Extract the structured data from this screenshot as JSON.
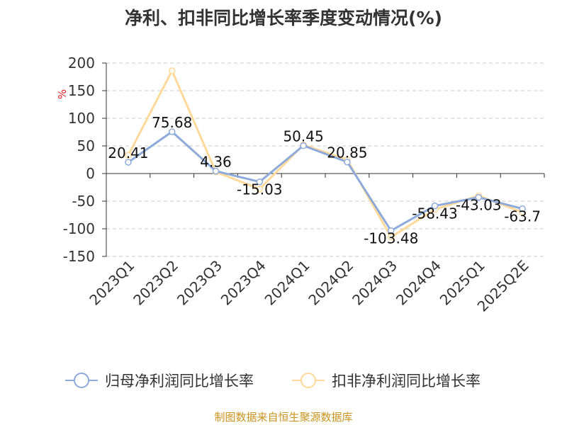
{
  "chart_data": {
    "type": "line",
    "title": "净利、扣非同比增长率季度变动情况(%)",
    "ylabel": "%",
    "categories": [
      "2023Q1",
      "2023Q2",
      "2023Q3",
      "2023Q4",
      "2024Q1",
      "2024Q2",
      "2024Q3",
      "2024Q4",
      "2025Q1",
      "2025Q2E"
    ],
    "ylim": [
      -150,
      200
    ],
    "yticks": [
      200,
      150,
      100,
      50,
      0,
      -50,
      -100,
      -150
    ],
    "grid": true,
    "legend_position": "bottom",
    "series": [
      {
        "name": "归母净利润同比增长率",
        "color": "#8eaadb",
        "values": [
          20.41,
          75.68,
          4.36,
          -15.03,
          50.45,
          20.85,
          -103.48,
          -58.43,
          -43.03,
          -63.7
        ],
        "labels": [
          "20.41",
          "75.68",
          "4.36",
          "-15.03",
          "50.45",
          "20.85",
          "-103.48",
          "-58.43",
          "-43.03",
          "-63.7"
        ]
      },
      {
        "name": "扣非净利润同比增长率",
        "color": "#ffd99a",
        "values": [
          33,
          186,
          3,
          -28,
          52,
          25,
          -115,
          -65,
          -40,
          -70
        ]
      }
    ]
  },
  "source": "制图数据来自恒生聚源数据库"
}
